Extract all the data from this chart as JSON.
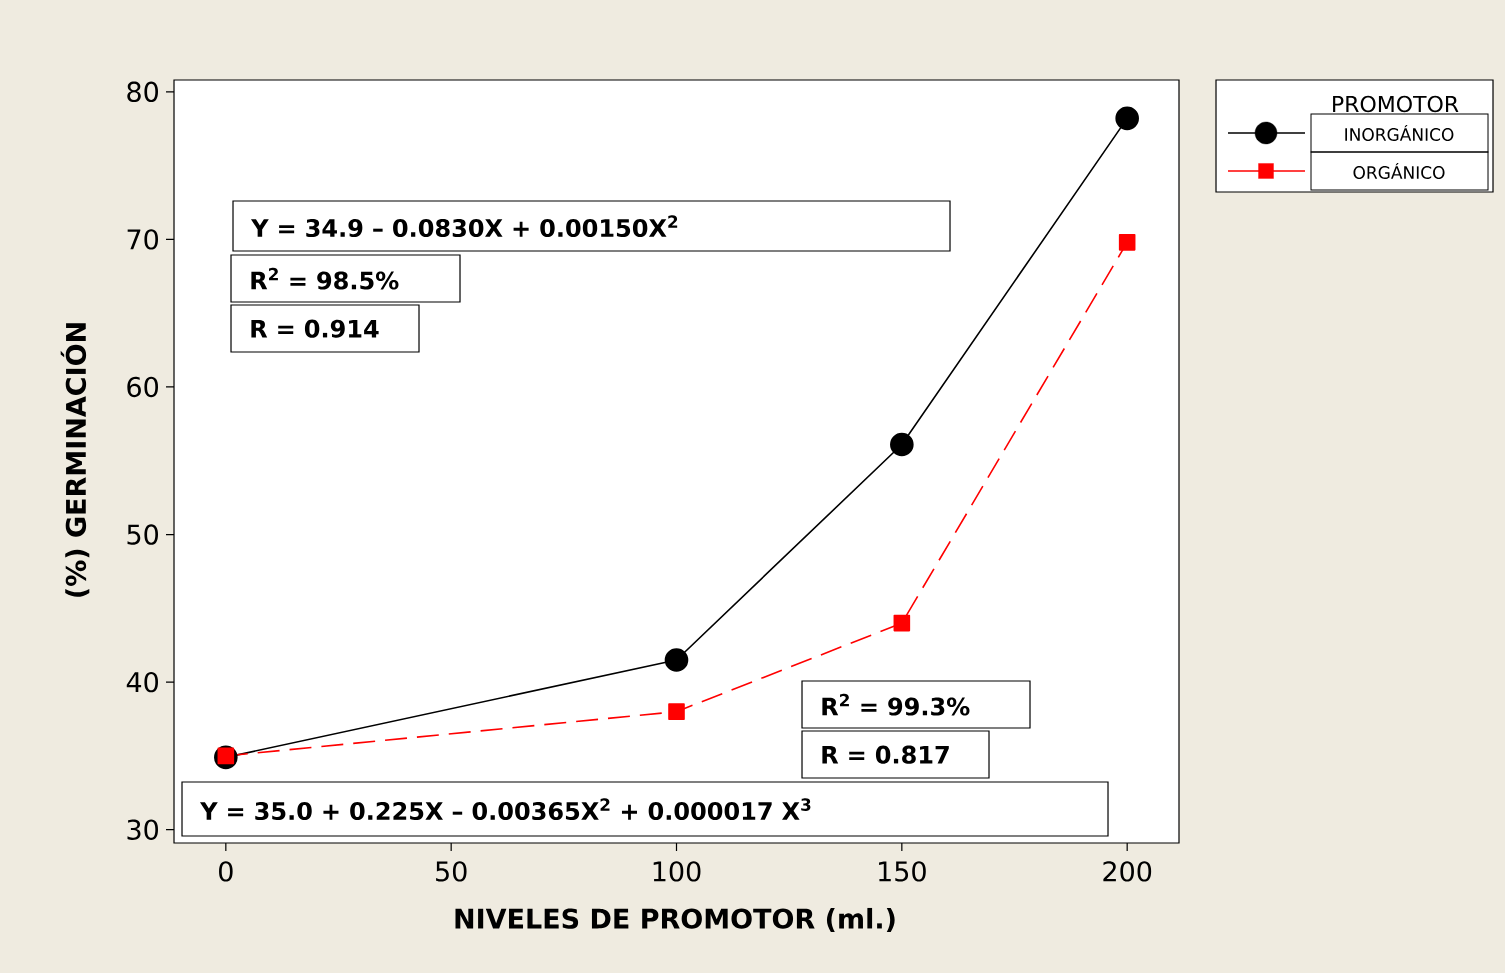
{
  "chart_data": {
    "type": "line",
    "xlabel": "NIVELES DE PROMOTOR (ml.)",
    "ylabel": "(%) GERMINACIÓN",
    "legend_title": "PROMOTOR",
    "x": [
      0,
      100,
      150,
      200
    ],
    "series": [
      {
        "name": "INORGÁNICO",
        "color": "#000000",
        "marker": "circle",
        "line_style": "solid",
        "values": [
          34.9,
          41.5,
          56.1,
          78.2
        ]
      },
      {
        "name": "ORGÁNICO",
        "color": "#ff0000",
        "marker": "square",
        "line_style": "dashed",
        "values": [
          35.0,
          38.0,
          44.0,
          69.8
        ]
      }
    ],
    "xlim": [
      -11.5,
      211.5
    ],
    "ylim": [
      29.1,
      80.8
    ],
    "xticks": [
      0,
      50,
      100,
      150,
      200
    ],
    "yticks": [
      30,
      40,
      50,
      60,
      70,
      80
    ],
    "grid": false,
    "legend": "top right",
    "annotations": [
      "Y = 34.9 – 0.0830X + 0.00150X$^{2}$",
      "R$^{2}$ = 98.5%",
      "R = 0.914",
      "R$^{2}$ = 99.3%",
      "R = 0.817",
      "Y = 35.0 + 0.225X – 0.00365X$^{2}$ + 0.000017 X$^{3}$"
    ]
  }
}
